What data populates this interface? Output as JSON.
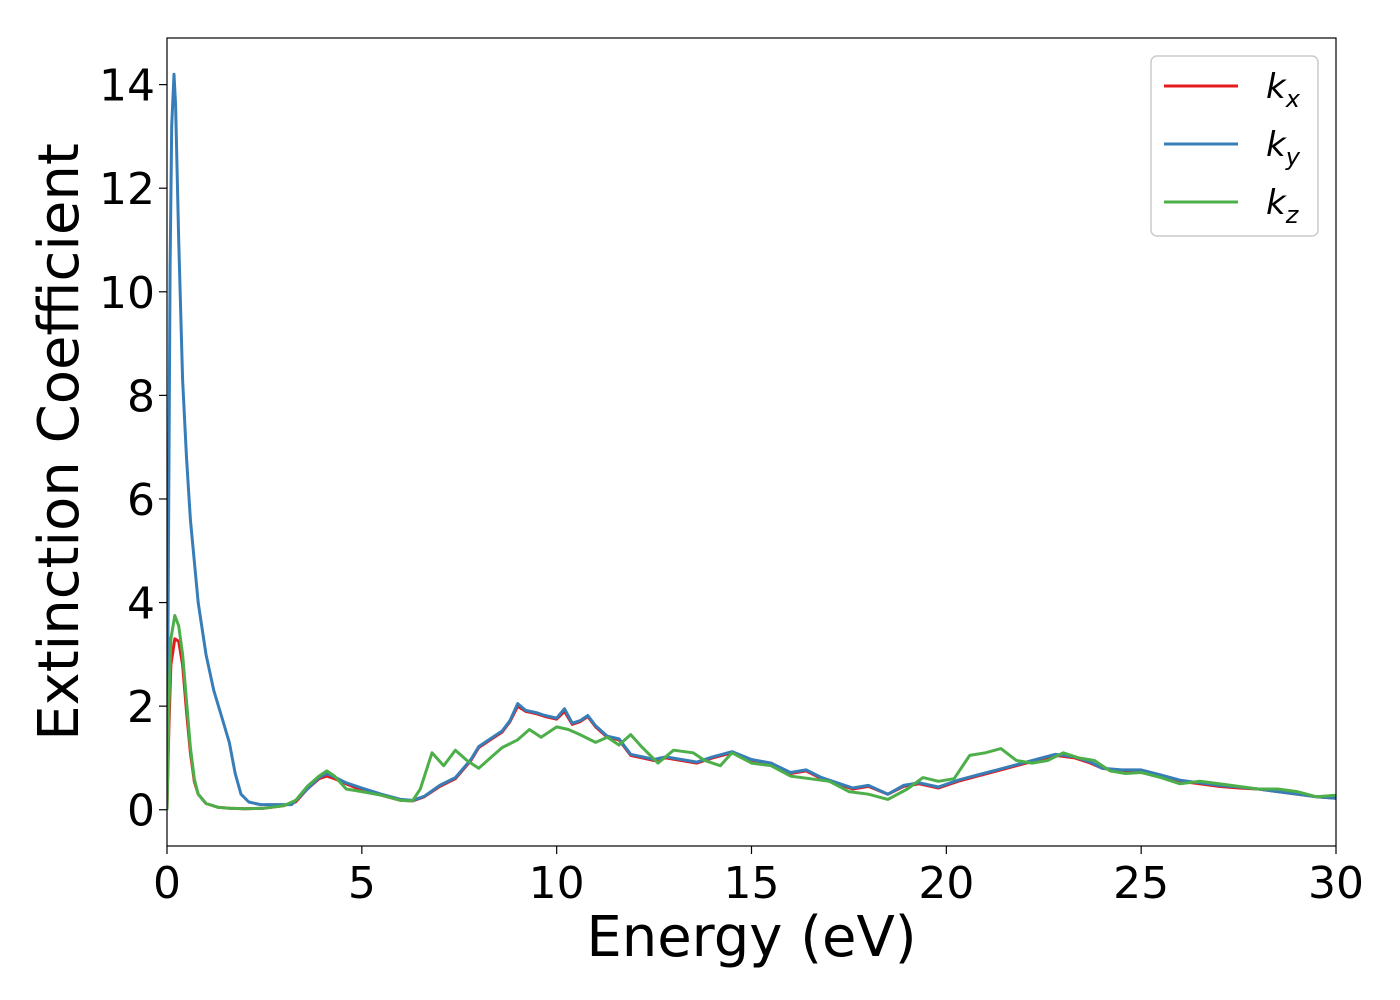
{
  "chart_data": {
    "type": "line",
    "title": "",
    "xlabel": "Energy (eV)",
    "ylabel": "Extinction Coefficient",
    "xlim": [
      0,
      30
    ],
    "ylim": [
      -0.7,
      14.9
    ],
    "xticks": [
      0,
      5,
      10,
      15,
      20,
      25,
      30
    ],
    "yticks": [
      0,
      2,
      4,
      6,
      8,
      10,
      12,
      14
    ],
    "grid": false,
    "legend_position": "top-right",
    "series": [
      {
        "name": "k_x",
        "label_base": "k",
        "label_sub": "x",
        "color": "#e41a1c",
        "points": [
          [
            0.0,
            0.0
          ],
          [
            0.05,
            1.6
          ],
          [
            0.1,
            2.8
          ],
          [
            0.2,
            3.3
          ],
          [
            0.3,
            3.25
          ],
          [
            0.4,
            2.8
          ],
          [
            0.5,
            1.9
          ],
          [
            0.6,
            1.1
          ],
          [
            0.7,
            0.55
          ],
          [
            0.8,
            0.3
          ],
          [
            1.0,
            0.12
          ],
          [
            1.3,
            0.05
          ],
          [
            1.6,
            0.03
          ],
          [
            2.0,
            0.02
          ],
          [
            2.5,
            0.03
          ],
          [
            3.0,
            0.08
          ],
          [
            3.3,
            0.15
          ],
          [
            3.6,
            0.4
          ],
          [
            3.9,
            0.6
          ],
          [
            4.1,
            0.65
          ],
          [
            4.3,
            0.6
          ],
          [
            4.6,
            0.5
          ],
          [
            5.0,
            0.38
          ],
          [
            5.5,
            0.28
          ],
          [
            6.0,
            0.18
          ],
          [
            6.3,
            0.17
          ],
          [
            6.6,
            0.25
          ],
          [
            7.0,
            0.45
          ],
          [
            7.4,
            0.6
          ],
          [
            7.8,
            0.95
          ],
          [
            8.0,
            1.2
          ],
          [
            8.3,
            1.35
          ],
          [
            8.6,
            1.5
          ],
          [
            8.8,
            1.7
          ],
          [
            9.0,
            2.0
          ],
          [
            9.2,
            1.9
          ],
          [
            9.5,
            1.85
          ],
          [
            9.7,
            1.8
          ],
          [
            10.0,
            1.75
          ],
          [
            10.2,
            1.9
          ],
          [
            10.4,
            1.65
          ],
          [
            10.6,
            1.7
          ],
          [
            10.8,
            1.8
          ],
          [
            11.0,
            1.6
          ],
          [
            11.3,
            1.4
          ],
          [
            11.6,
            1.35
          ],
          [
            11.9,
            1.05
          ],
          [
            12.2,
            1.0
          ],
          [
            12.5,
            0.95
          ],
          [
            12.8,
            1.0
          ],
          [
            13.2,
            0.95
          ],
          [
            13.6,
            0.9
          ],
          [
            14.0,
            1.0
          ],
          [
            14.5,
            1.1
          ],
          [
            15.0,
            0.95
          ],
          [
            15.5,
            0.9
          ],
          [
            16.0,
            0.7
          ],
          [
            16.4,
            0.75
          ],
          [
            16.8,
            0.6
          ],
          [
            17.2,
            0.5
          ],
          [
            17.6,
            0.4
          ],
          [
            18.0,
            0.45
          ],
          [
            18.5,
            0.3
          ],
          [
            18.9,
            0.45
          ],
          [
            19.3,
            0.5
          ],
          [
            19.8,
            0.42
          ],
          [
            20.3,
            0.55
          ],
          [
            20.8,
            0.65
          ],
          [
            21.3,
            0.75
          ],
          [
            21.8,
            0.85
          ],
          [
            22.3,
            0.95
          ],
          [
            22.8,
            1.05
          ],
          [
            23.3,
            1.0
          ],
          [
            23.7,
            0.9
          ],
          [
            24.0,
            0.8
          ],
          [
            24.5,
            0.75
          ],
          [
            25.0,
            0.75
          ],
          [
            25.5,
            0.65
          ],
          [
            26.0,
            0.55
          ],
          [
            26.5,
            0.5
          ],
          [
            27.0,
            0.45
          ],
          [
            27.5,
            0.42
          ],
          [
            28.0,
            0.4
          ],
          [
            28.5,
            0.35
          ],
          [
            29.0,
            0.3
          ],
          [
            29.5,
            0.25
          ],
          [
            30.0,
            0.22
          ]
        ]
      },
      {
        "name": "k_y",
        "label_base": "k",
        "label_sub": "y",
        "color": "#377eb8",
        "points": [
          [
            0.0,
            0.0
          ],
          [
            0.04,
            5.5
          ],
          [
            0.08,
            10.5
          ],
          [
            0.12,
            13.2
          ],
          [
            0.18,
            14.2
          ],
          [
            0.22,
            13.6
          ],
          [
            0.3,
            11.0
          ],
          [
            0.4,
            8.3
          ],
          [
            0.5,
            6.8
          ],
          [
            0.6,
            5.6
          ],
          [
            0.8,
            4.0
          ],
          [
            1.0,
            3.0
          ],
          [
            1.2,
            2.3
          ],
          [
            1.4,
            1.8
          ],
          [
            1.6,
            1.3
          ],
          [
            1.75,
            0.7
          ],
          [
            1.9,
            0.3
          ],
          [
            2.1,
            0.15
          ],
          [
            2.4,
            0.1
          ],
          [
            2.8,
            0.1
          ],
          [
            3.2,
            0.1
          ],
          [
            3.6,
            0.4
          ],
          [
            3.9,
            0.62
          ],
          [
            4.1,
            0.7
          ],
          [
            4.3,
            0.63
          ],
          [
            4.6,
            0.52
          ],
          [
            5.0,
            0.42
          ],
          [
            5.5,
            0.3
          ],
          [
            6.0,
            0.2
          ],
          [
            6.3,
            0.18
          ],
          [
            6.6,
            0.26
          ],
          [
            7.0,
            0.47
          ],
          [
            7.4,
            0.62
          ],
          [
            7.8,
            0.97
          ],
          [
            8.0,
            1.22
          ],
          [
            8.3,
            1.37
          ],
          [
            8.6,
            1.52
          ],
          [
            8.8,
            1.72
          ],
          [
            9.0,
            2.05
          ],
          [
            9.2,
            1.92
          ],
          [
            9.5,
            1.87
          ],
          [
            9.7,
            1.82
          ],
          [
            10.0,
            1.77
          ],
          [
            10.2,
            1.95
          ],
          [
            10.4,
            1.67
          ],
          [
            10.6,
            1.72
          ],
          [
            10.8,
            1.82
          ],
          [
            11.0,
            1.62
          ],
          [
            11.3,
            1.42
          ],
          [
            11.6,
            1.37
          ],
          [
            11.9,
            1.07
          ],
          [
            12.2,
            1.02
          ],
          [
            12.5,
            0.97
          ],
          [
            12.8,
            1.02
          ],
          [
            13.2,
            0.97
          ],
          [
            13.6,
            0.92
          ],
          [
            14.0,
            1.02
          ],
          [
            14.5,
            1.12
          ],
          [
            15.0,
            0.97
          ],
          [
            15.5,
            0.9
          ],
          [
            16.0,
            0.72
          ],
          [
            16.4,
            0.77
          ],
          [
            16.8,
            0.62
          ],
          [
            17.2,
            0.52
          ],
          [
            17.6,
            0.42
          ],
          [
            18.0,
            0.47
          ],
          [
            18.5,
            0.3
          ],
          [
            18.9,
            0.47
          ],
          [
            19.3,
            0.52
          ],
          [
            19.8,
            0.44
          ],
          [
            20.3,
            0.57
          ],
          [
            20.8,
            0.67
          ],
          [
            21.3,
            0.77
          ],
          [
            21.8,
            0.87
          ],
          [
            22.3,
            0.97
          ],
          [
            22.8,
            1.07
          ],
          [
            23.3,
            1.02
          ],
          [
            23.7,
            0.92
          ],
          [
            24.0,
            0.8
          ],
          [
            24.5,
            0.77
          ],
          [
            25.0,
            0.77
          ],
          [
            25.5,
            0.67
          ],
          [
            26.0,
            0.57
          ],
          [
            26.5,
            0.52
          ],
          [
            27.0,
            0.47
          ],
          [
            27.5,
            0.44
          ],
          [
            28.0,
            0.4
          ],
          [
            28.5,
            0.35
          ],
          [
            29.0,
            0.3
          ],
          [
            29.5,
            0.25
          ],
          [
            30.0,
            0.22
          ]
        ]
      },
      {
        "name": "k_z",
        "label_base": "k",
        "label_sub": "z",
        "color": "#4daf4a",
        "points": [
          [
            0.0,
            0.0
          ],
          [
            0.05,
            2.0
          ],
          [
            0.1,
            3.3
          ],
          [
            0.2,
            3.75
          ],
          [
            0.3,
            3.55
          ],
          [
            0.4,
            3.0
          ],
          [
            0.5,
            2.1
          ],
          [
            0.6,
            1.2
          ],
          [
            0.7,
            0.6
          ],
          [
            0.8,
            0.3
          ],
          [
            1.0,
            0.12
          ],
          [
            1.3,
            0.05
          ],
          [
            1.6,
            0.03
          ],
          [
            2.0,
            0.02
          ],
          [
            2.5,
            0.03
          ],
          [
            3.0,
            0.08
          ],
          [
            3.3,
            0.18
          ],
          [
            3.6,
            0.45
          ],
          [
            3.9,
            0.65
          ],
          [
            4.1,
            0.75
          ],
          [
            4.3,
            0.65
          ],
          [
            4.6,
            0.4
          ],
          [
            5.0,
            0.35
          ],
          [
            5.5,
            0.28
          ],
          [
            6.0,
            0.18
          ],
          [
            6.3,
            0.17
          ],
          [
            6.5,
            0.4
          ],
          [
            6.8,
            1.1
          ],
          [
            7.1,
            0.85
          ],
          [
            7.4,
            1.15
          ],
          [
            7.7,
            0.95
          ],
          [
            8.0,
            0.8
          ],
          [
            8.3,
            1.0
          ],
          [
            8.6,
            1.2
          ],
          [
            9.0,
            1.35
          ],
          [
            9.3,
            1.55
          ],
          [
            9.6,
            1.4
          ],
          [
            10.0,
            1.6
          ],
          [
            10.3,
            1.55
          ],
          [
            10.6,
            1.45
          ],
          [
            11.0,
            1.3
          ],
          [
            11.3,
            1.4
          ],
          [
            11.6,
            1.25
          ],
          [
            11.9,
            1.45
          ],
          [
            12.2,
            1.2
          ],
          [
            12.6,
            0.9
          ],
          [
            13.0,
            1.15
          ],
          [
            13.5,
            1.1
          ],
          [
            13.8,
            0.95
          ],
          [
            14.2,
            0.85
          ],
          [
            14.5,
            1.1
          ],
          [
            15.0,
            0.9
          ],
          [
            15.5,
            0.85
          ],
          [
            16.0,
            0.65
          ],
          [
            16.5,
            0.6
          ],
          [
            17.0,
            0.55
          ],
          [
            17.5,
            0.35
          ],
          [
            18.0,
            0.3
          ],
          [
            18.5,
            0.2
          ],
          [
            19.0,
            0.4
          ],
          [
            19.4,
            0.62
          ],
          [
            19.8,
            0.55
          ],
          [
            20.2,
            0.6
          ],
          [
            20.6,
            1.05
          ],
          [
            21.0,
            1.1
          ],
          [
            21.4,
            1.18
          ],
          [
            21.8,
            0.95
          ],
          [
            22.2,
            0.9
          ],
          [
            22.6,
            0.95
          ],
          [
            23.0,
            1.1
          ],
          [
            23.4,
            1.0
          ],
          [
            23.8,
            0.95
          ],
          [
            24.2,
            0.75
          ],
          [
            24.6,
            0.7
          ],
          [
            25.0,
            0.72
          ],
          [
            25.5,
            0.62
          ],
          [
            26.0,
            0.5
          ],
          [
            26.5,
            0.55
          ],
          [
            27.0,
            0.5
          ],
          [
            27.5,
            0.45
          ],
          [
            28.0,
            0.4
          ],
          [
            28.5,
            0.4
          ],
          [
            29.0,
            0.35
          ],
          [
            29.5,
            0.25
          ],
          [
            30.0,
            0.28
          ]
        ]
      }
    ]
  }
}
